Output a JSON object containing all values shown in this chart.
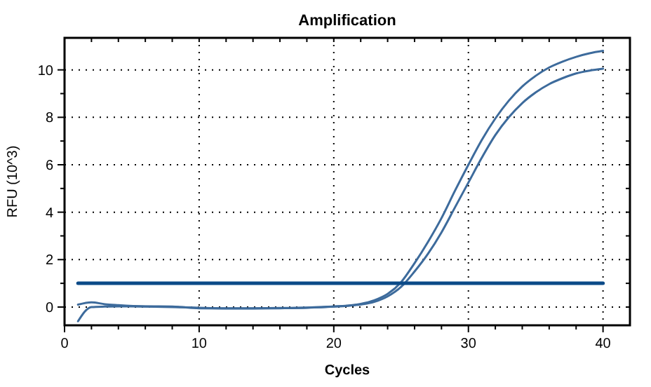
{
  "chart_data": {
    "type": "line",
    "title": "Amplification",
    "xlabel": "Cycles",
    "ylabel": "RFU (10^3)",
    "xlim": [
      0,
      42
    ],
    "ylim": [
      -0.77,
      11.35
    ],
    "xticks": [
      0,
      {
        "value": 2,
        "label": null
      },
      {
        "value": 4,
        "label": null
      },
      {
        "value": 6,
        "label": null
      },
      {
        "value": 8,
        "label": null
      },
      10,
      {
        "value": 12,
        "label": null
      },
      {
        "value": 14,
        "label": null
      },
      {
        "value": 16,
        "label": null
      },
      {
        "value": 18,
        "label": null
      },
      20,
      {
        "value": 22,
        "label": null
      },
      {
        "value": 24,
        "label": null
      },
      {
        "value": 26,
        "label": null
      },
      {
        "value": 28,
        "label": null
      },
      30,
      {
        "value": 32,
        "label": null
      },
      {
        "value": 34,
        "label": null
      },
      {
        "value": 36,
        "label": null
      },
      {
        "value": 38,
        "label": null
      },
      40
    ],
    "yticks": [
      0,
      {
        "value": 1,
        "label": null
      },
      2,
      {
        "value": 3,
        "label": null
      },
      4,
      {
        "value": 5,
        "label": null
      },
      6,
      {
        "value": 7,
        "label": null
      },
      8,
      {
        "value": 9,
        "label": null
      },
      10
    ],
    "grid": true,
    "line_style": "solid",
    "marker": "none",
    "series": [
      {
        "color": "#3d6b9c",
        "x": [
          1,
          2,
          3,
          4,
          6,
          8,
          10,
          12,
          14,
          16,
          18,
          20,
          21,
          22,
          23,
          24,
          25,
          26,
          27,
          28,
          29,
          30,
          31,
          32,
          33,
          34,
          35,
          36,
          37,
          38,
          39,
          40
        ],
        "values": [
          0.1,
          0.2,
          0.12,
          0.08,
          0.03,
          0.02,
          -0.05,
          -0.06,
          -0.06,
          -0.05,
          -0.03,
          0.02,
          0.06,
          0.13,
          0.28,
          0.55,
          1.05,
          1.85,
          2.75,
          3.75,
          4.9,
          6.0,
          7.05,
          7.95,
          8.7,
          9.3,
          9.75,
          10.1,
          10.35,
          10.55,
          10.7,
          10.8
        ]
      },
      {
        "color": "#3d6b9c",
        "x": [
          1,
          2,
          3,
          4,
          6,
          8,
          10,
          12,
          14,
          16,
          18,
          20,
          21,
          22,
          23,
          24,
          25,
          26,
          27,
          28,
          29,
          30,
          31,
          32,
          33,
          34,
          35,
          36,
          37,
          38,
          39,
          40
        ],
        "values": [
          -0.6,
          0,
          0.02,
          0.03,
          0.02,
          0,
          -0.03,
          -0.05,
          -0.05,
          -0.04,
          -0.02,
          0.02,
          0.05,
          0.11,
          0.22,
          0.45,
          0.85,
          1.5,
          2.25,
          3.15,
          4.2,
          5.25,
          6.3,
          7.25,
          8.0,
          8.6,
          9.05,
          9.4,
          9.65,
          9.85,
          9.97,
          10.05
        ]
      },
      {
        "color": "#0b4a88",
        "x": [
          1,
          40
        ],
        "values": [
          1,
          1
        ]
      }
    ]
  }
}
